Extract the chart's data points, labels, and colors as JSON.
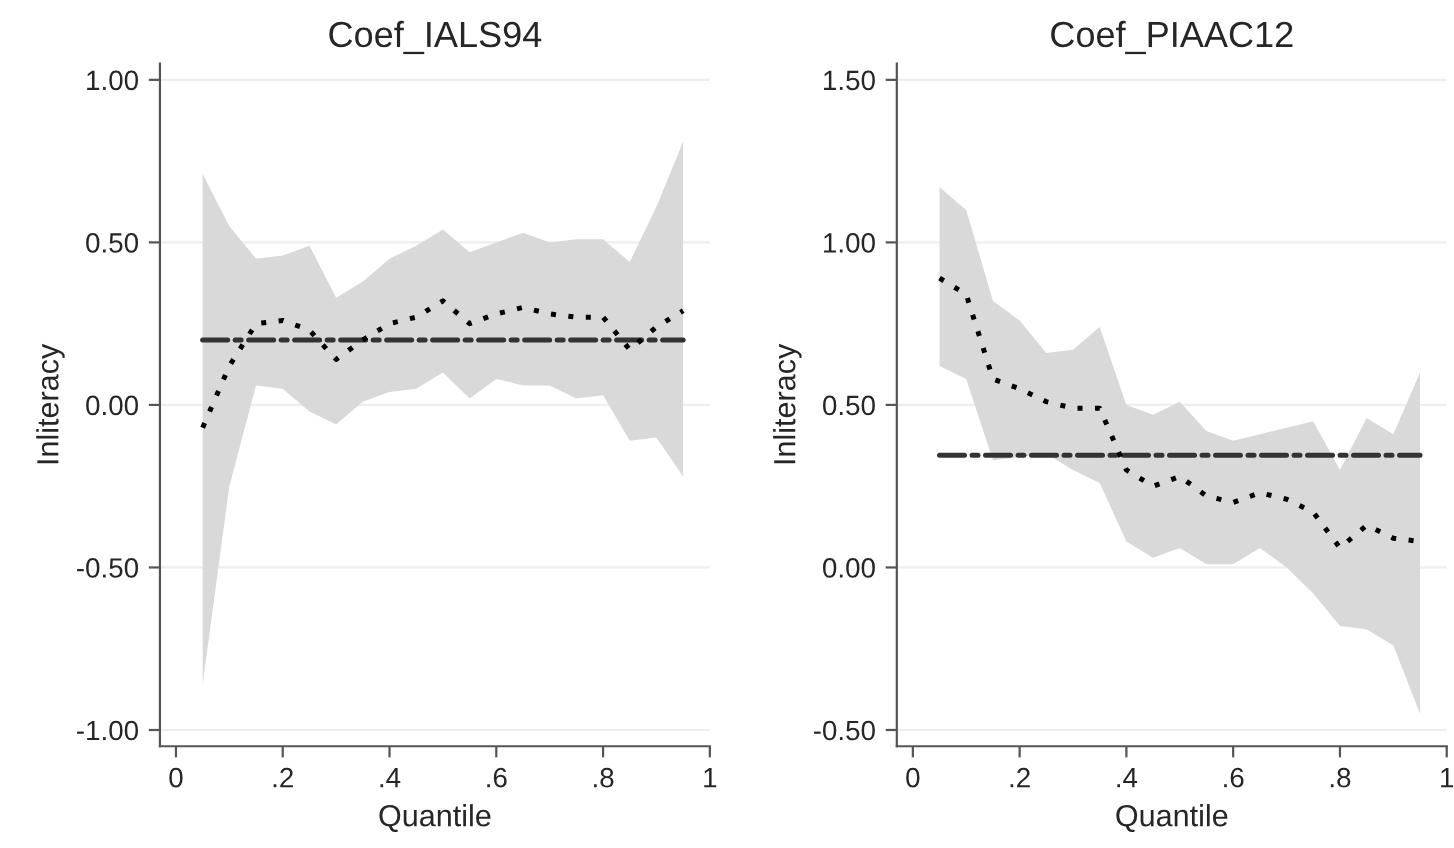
{
  "chart_data": [
    {
      "type": "line",
      "title": "Coef_IALS94",
      "xlabel": "Quantile",
      "ylabel": "Inliteracy",
      "x": [
        0.05,
        0.1,
        0.15,
        0.2,
        0.25,
        0.3,
        0.35,
        0.4,
        0.45,
        0.5,
        0.55,
        0.6,
        0.65,
        0.7,
        0.75,
        0.8,
        0.85,
        0.9,
        0.95
      ],
      "series": [
        {
          "color": "#000000",
          "line_style": "dotted",
          "values": [
            -0.07,
            0.12,
            0.25,
            0.26,
            0.23,
            0.14,
            0.2,
            0.25,
            0.27,
            0.32,
            0.25,
            0.28,
            0.3,
            0.28,
            0.27,
            0.27,
            0.17,
            0.24,
            0.29
          ],
          "upper": [
            0.71,
            0.55,
            0.45,
            0.46,
            0.49,
            0.33,
            0.38,
            0.45,
            0.49,
            0.54,
            0.47,
            0.5,
            0.53,
            0.5,
            0.51,
            0.51,
            0.44,
            0.61,
            0.81
          ],
          "lower": [
            -0.86,
            -0.25,
            0.06,
            0.05,
            -0.02,
            -0.06,
            0.01,
            0.04,
            0.05,
            0.1,
            0.02,
            0.08,
            0.06,
            0.06,
            0.02,
            0.03,
            -0.11,
            -0.1,
            -0.22
          ]
        }
      ],
      "ref_lines": [
        {
          "axis": "y",
          "value": 0.2,
          "color": "#333333",
          "line_style": "dashed"
        }
      ],
      "xlim": [
        -0.03,
        1.0
      ],
      "xticks": [
        {
          "value": 0,
          "label": "0"
        },
        {
          "value": 0.2,
          "label": ".2"
        },
        {
          "value": 0.4,
          "label": ".4"
        },
        {
          "value": 0.6,
          "label": ".6"
        },
        {
          "value": 0.8,
          "label": ".8"
        },
        {
          "value": 1,
          "label": "1"
        }
      ],
      "ylim": [
        -1.05,
        1.05
      ],
      "yticks": [
        {
          "value": -1,
          "label": "-1.00"
        },
        {
          "value": -0.5,
          "label": "-0.50"
        },
        {
          "value": 0,
          "label": "0.00"
        },
        {
          "value": 0.5,
          "label": "0.50"
        },
        {
          "value": 1,
          "label": "1.00"
        }
      ],
      "grid": "y"
    },
    {
      "type": "line",
      "title": "Coef_PIAAC12",
      "xlabel": "Quantile",
      "ylabel": "Inliteracy",
      "x": [
        0.05,
        0.1,
        0.15,
        0.2,
        0.25,
        0.3,
        0.35,
        0.4,
        0.45,
        0.5,
        0.55,
        0.6,
        0.65,
        0.7,
        0.75,
        0.8,
        0.85,
        0.9,
        0.95
      ],
      "series": [
        {
          "color": "#000000",
          "line_style": "dotted",
          "values": [
            0.89,
            0.84,
            0.58,
            0.55,
            0.51,
            0.49,
            0.49,
            0.3,
            0.25,
            0.28,
            0.22,
            0.2,
            0.23,
            0.21,
            0.17,
            0.06,
            0.13,
            0.09,
            0.08
          ],
          "upper": [
            1.17,
            1.1,
            0.82,
            0.76,
            0.66,
            0.67,
            0.74,
            0.5,
            0.47,
            0.51,
            0.42,
            0.39,
            0.41,
            0.43,
            0.45,
            0.3,
            0.46,
            0.41,
            0.6
          ],
          "lower": [
            0.62,
            0.58,
            0.33,
            0.34,
            0.35,
            0.3,
            0.26,
            0.08,
            0.03,
            0.06,
            0.01,
            0.01,
            0.06,
            0.0,
            -0.08,
            -0.18,
            -0.19,
            -0.24,
            -0.45
          ]
        }
      ],
      "ref_lines": [
        {
          "axis": "y",
          "value": 0.345,
          "color": "#333333",
          "line_style": "dashed"
        }
      ],
      "xlim": [
        -0.03,
        1.0
      ],
      "xticks": [
        {
          "value": 0,
          "label": "0"
        },
        {
          "value": 0.2,
          "label": ".2"
        },
        {
          "value": 0.4,
          "label": ".4"
        },
        {
          "value": 0.6,
          "label": ".6"
        },
        {
          "value": 0.8,
          "label": ".8"
        },
        {
          "value": 1,
          "label": "1"
        }
      ],
      "ylim": [
        -0.55,
        1.55
      ],
      "yticks": [
        {
          "value": -0.5,
          "label": "-0.50"
        },
        {
          "value": 0,
          "label": "0.00"
        },
        {
          "value": 0.5,
          "label": "0.50"
        },
        {
          "value": 1,
          "label": "1.00"
        },
        {
          "value": 1.5,
          "label": "1.50"
        }
      ],
      "grid": "y"
    }
  ]
}
